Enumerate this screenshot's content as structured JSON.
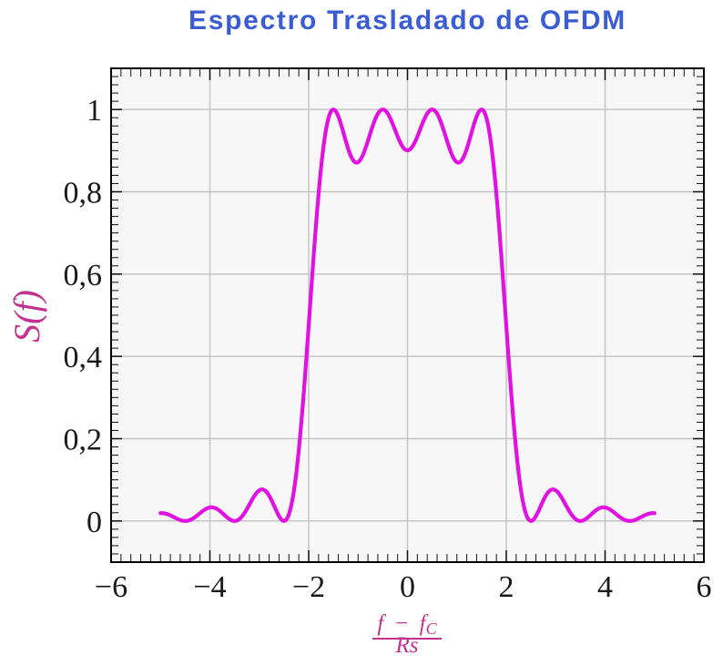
{
  "title": {
    "text": "Espectro Trasladado de OFDM",
    "color": "#3A5DD3"
  },
  "y_axis_label": {
    "text": "S(f)",
    "color": "#C2328F"
  },
  "x_axis_label": {
    "numerator_main": "f − f",
    "numerator_sub": "C",
    "denominator": "Rs",
    "color": "#C2328F"
  },
  "chart_data": {
    "type": "line",
    "title": "Espectro Trasladado de OFDM",
    "xlabel": "(f − f_C)/Rs",
    "ylabel": "S(f)",
    "xlim": [
      -6,
      6
    ],
    "ylim": [
      -0.1,
      1.1
    ],
    "grid": {
      "x_major": [
        -4,
        -2,
        0,
        2,
        4
      ],
      "y_major": [
        0,
        0.2,
        0.4,
        0.6,
        0.8,
        1
      ]
    },
    "x_tick_labels": [
      "−6",
      "−4",
      "−2",
      "0",
      "2",
      "4",
      "6"
    ],
    "x_tick_values": [
      -6,
      -4,
      -2,
      0,
      2,
      4,
      6
    ],
    "y_tick_labels": [
      "0",
      "0,2",
      "0,4",
      "0,6",
      "0,8",
      "1"
    ],
    "y_tick_values": [
      0,
      0.2,
      0.4,
      0.6,
      0.8,
      1
    ],
    "minor_ticks": {
      "x_step": 0.2,
      "y_step": 0.02
    },
    "series": [
      {
        "name": "S(f)",
        "color": "#E112E1",
        "line_width": 4.2,
        "x_range": [
          -5,
          5
        ],
        "sample_step": 0.025,
        "model": "S(x) = sum over subcarriers k of sinc^2(x - k), sinc(u) = sin(pi*u)/(pi*u)",
        "subcarriers": [
          -1.5,
          -0.5,
          0.5,
          1.5
        ]
      }
    ],
    "key_points": {
      "peaks": [
        [
          -1.5,
          1.0
        ],
        [
          -0.5,
          1.0
        ],
        [
          0.5,
          1.0
        ],
        [
          1.5,
          1.0
        ]
      ],
      "inband_dips": [
        [
          -1,
          0.872
        ],
        [
          0,
          0.901
        ],
        [
          1,
          0.872
        ]
      ],
      "zeros": [
        -4.5,
        -3.5,
        -2.5,
        2.5,
        3.5,
        4.5
      ],
      "sidelobe_maxima": [
        [
          -3,
          0.075
        ],
        [
          3,
          0.075
        ],
        [
          -4,
          0.033
        ],
        [
          4,
          0.033
        ]
      ],
      "endpoints": [
        [
          -5,
          0.019
        ],
        [
          5,
          0.019
        ]
      ]
    },
    "plot_bg": "#F7F7F7",
    "grid_color": "#C2C2C2",
    "box_color": "#000000"
  }
}
